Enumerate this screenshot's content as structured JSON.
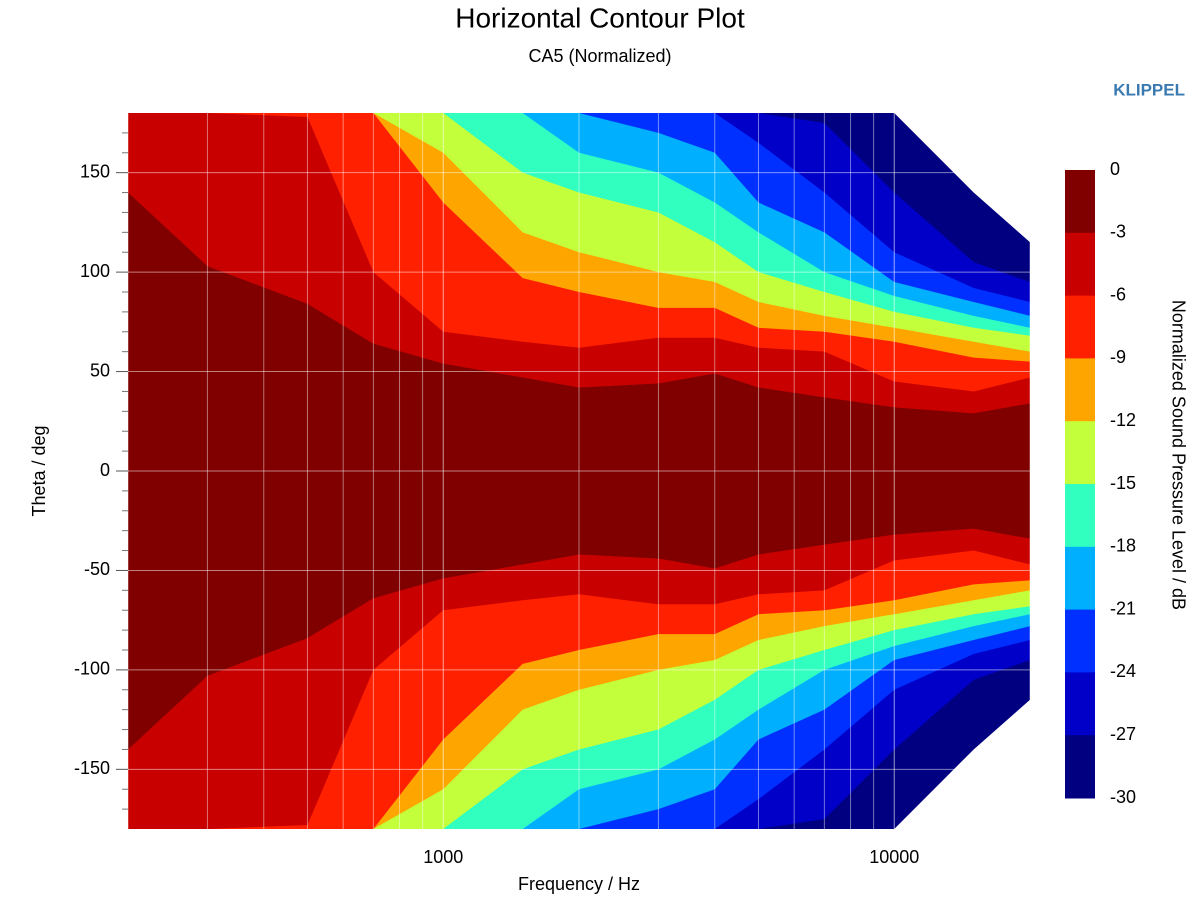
{
  "chart_data": {
    "type": "contour",
    "title": "Horizontal Contour Plot",
    "subtitle": "CA5 (Normalized)",
    "brand": "KLIPPEL",
    "xlabel": "Frequency / Hz",
    "ylabel": "Theta / deg",
    "colorbar_label": "Normalized Sound Pressure Level / dB",
    "xscale": "log",
    "xlim": [
      200,
      20000
    ],
    "xticks": [
      1000,
      10000
    ],
    "xminorticks": [
      200,
      300,
      400,
      500,
      600,
      700,
      800,
      900,
      2000,
      3000,
      4000,
      5000,
      6000,
      7000,
      8000,
      9000,
      20000
    ],
    "ylim": [
      -180,
      180
    ],
    "yticks": [
      -150,
      -100,
      -50,
      0,
      50,
      100,
      150
    ],
    "yminorticks": [
      -170,
      -160,
      -140,
      -130,
      -120,
      -110,
      -90,
      -80,
      -70,
      -60,
      -40,
      -30,
      -20,
      -10,
      10,
      20,
      30,
      40,
      60,
      70,
      80,
      90,
      110,
      120,
      130,
      140,
      160,
      170
    ],
    "grid": true,
    "levels": [
      0,
      -3,
      -6,
      -9,
      -12,
      -15,
      -18,
      -21,
      -24,
      -27,
      -30
    ],
    "colors": [
      "#800000",
      "#c80000",
      "#ff2000",
      "#ffa500",
      "#c4ff3c",
      "#30ffc0",
      "#00b0ff",
      "#0030ff",
      "#0000c8",
      "#000080"
    ],
    "x": [
      200,
      300,
      500,
      700,
      1000,
      1500,
      2000,
      3000,
      4000,
      5000,
      7000,
      10000,
      15000,
      20000
    ],
    "boundaries": [
      [
        140,
        103,
        84,
        64,
        54,
        47,
        42,
        44,
        49,
        42,
        37,
        32,
        29,
        34
      ],
      [
        180,
        180,
        178,
        100,
        70,
        65,
        62,
        67,
        67,
        62,
        60,
        45,
        40,
        47
      ],
      [
        180,
        180,
        180,
        180,
        135,
        97,
        90,
        82,
        82,
        72,
        70,
        65,
        57,
        55
      ],
      [
        180,
        180,
        180,
        180,
        160,
        120,
        110,
        100,
        95,
        85,
        78,
        72,
        65,
        60
      ],
      [
        180,
        180,
        180,
        180,
        180,
        150,
        140,
        130,
        115,
        100,
        90,
        80,
        72,
        68
      ],
      [
        180,
        180,
        180,
        180,
        180,
        180,
        160,
        150,
        135,
        120,
        100,
        88,
        78,
        72
      ],
      [
        180,
        180,
        180,
        180,
        180,
        180,
        180,
        170,
        160,
        135,
        120,
        95,
        85,
        78
      ],
      [
        180,
        180,
        180,
        180,
        180,
        180,
        180,
        180,
        180,
        165,
        140,
        110,
        92,
        85
      ],
      [
        180,
        180,
        180,
        180,
        180,
        180,
        180,
        180,
        180,
        180,
        175,
        140,
        105,
        95
      ],
      [
        180,
        180,
        180,
        180,
        180,
        180,
        180,
        180,
        180,
        180,
        180,
        180,
        140,
        115
      ]
    ]
  }
}
